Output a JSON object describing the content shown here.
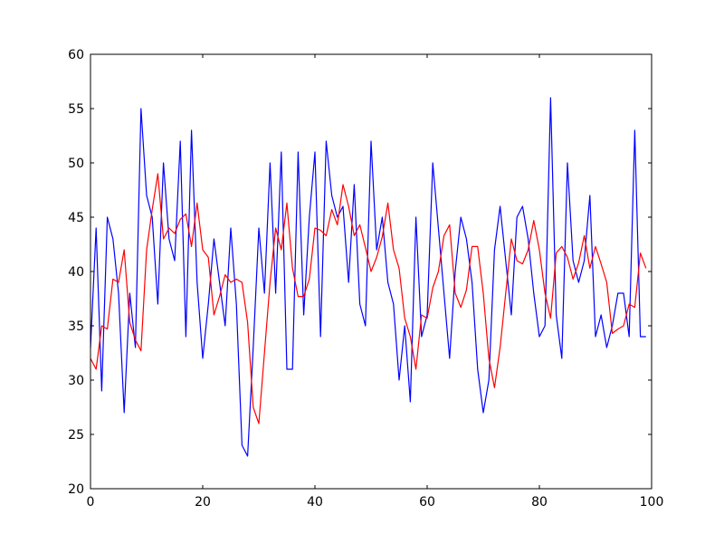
{
  "chart_data": {
    "type": "line",
    "title": "",
    "xlabel": "",
    "ylabel": "",
    "xlim": [
      0,
      100
    ],
    "ylim": [
      20,
      60
    ],
    "x_ticks": [
      0,
      20,
      40,
      60,
      80,
      100
    ],
    "y_ticks": [
      20,
      25,
      30,
      35,
      40,
      45,
      50,
      55,
      60
    ],
    "x_tick_labels": [
      "0",
      "20",
      "40",
      "60",
      "80",
      "100"
    ],
    "y_tick_labels": [
      "20",
      "25",
      "30",
      "35",
      "40",
      "45",
      "50",
      "55",
      "60"
    ],
    "grid": false,
    "legend": "none",
    "series": [
      {
        "color": "#0000ff",
        "x": [
          0,
          1,
          2,
          3,
          4,
          5,
          6,
          7,
          8,
          9,
          10,
          11,
          12,
          13,
          14,
          15,
          16,
          17,
          18,
          19,
          20,
          21,
          22,
          23,
          24,
          25,
          26,
          27,
          28,
          29,
          30,
          31,
          32,
          33,
          34,
          35,
          36,
          37,
          38,
          39,
          40,
          41,
          42,
          43,
          44,
          45,
          46,
          47,
          48,
          49,
          50,
          51,
          52,
          53,
          54,
          55,
          56,
          57,
          58,
          59,
          60,
          61,
          62,
          63,
          64,
          65,
          66,
          67,
          68,
          69,
          70,
          71,
          72,
          73,
          74,
          75,
          76,
          77,
          78,
          79,
          80,
          81,
          82,
          83,
          84,
          85,
          86,
          87,
          88,
          89,
          90,
          91,
          92,
          93,
          94,
          95,
          96,
          97,
          98,
          99
        ],
        "values": [
          33,
          44,
          29,
          45,
          43,
          38,
          27,
          38,
          33,
          55,
          47,
          45,
          37,
          50,
          43,
          41,
          52,
          34,
          53,
          39,
          32,
          37,
          43,
          39,
          35,
          44,
          37,
          24,
          23,
          33,
          44,
          38,
          50,
          38,
          51,
          31,
          31,
          51,
          36,
          45,
          51,
          34,
          52,
          47,
          45,
          46,
          39,
          48,
          37,
          35,
          52,
          42,
          45,
          39,
          37,
          30,
          35,
          28,
          45,
          34,
          36,
          50,
          44,
          38,
          32,
          40,
          45,
          43,
          39,
          31,
          27,
          30,
          42,
          46,
          41,
          36,
          45,
          46,
          43,
          38,
          34,
          35,
          56,
          36,
          32,
          50,
          41,
          39,
          41,
          47,
          34,
          36,
          33,
          35,
          38,
          38,
          34,
          53,
          34,
          34
        ]
      },
      {
        "color": "#ff0000",
        "x": [
          0,
          1,
          2,
          3,
          4,
          5,
          6,
          7,
          8,
          9,
          10,
          11,
          12,
          13,
          14,
          15,
          16,
          17,
          18,
          19,
          20,
          21,
          22,
          23,
          24,
          25,
          26,
          27,
          28,
          29,
          30,
          31,
          32,
          33,
          34,
          35,
          36,
          37,
          38,
          39,
          40,
          41,
          42,
          43,
          44,
          45,
          46,
          47,
          48,
          49,
          50,
          51,
          52,
          53,
          54,
          55,
          56,
          57,
          58,
          59,
          60,
          61,
          62,
          63,
          64,
          65,
          66,
          67,
          68,
          69,
          70,
          71,
          72,
          73,
          74,
          75,
          76,
          77,
          78,
          79,
          80,
          81,
          82,
          83,
          84,
          85,
          86,
          87,
          88,
          89,
          90,
          91,
          92,
          93,
          94,
          95,
          96,
          97,
          98,
          99
        ],
        "values": [
          32,
          31,
          35,
          34.7,
          39.3,
          39,
          42,
          35.3,
          33.7,
          32.7,
          42,
          45.7,
          49,
          43,
          44,
          43.5,
          44.8,
          45.3,
          42.3,
          46.3,
          42,
          41.3,
          36,
          37.7,
          39.7,
          39,
          39.3,
          39,
          35.3,
          27.5,
          26,
          32.5,
          39,
          44,
          42,
          46.3,
          40.3,
          37.7,
          37.7,
          39.3,
          44,
          43.8,
          43.3,
          45.7,
          44.3,
          48,
          46,
          43.3,
          44.3,
          42.2,
          40,
          41.3,
          43.2,
          46.3,
          42,
          40.3,
          35.7,
          34,
          31,
          36,
          35.7,
          38.5,
          40,
          43.3,
          44.3,
          38,
          36.7,
          38.3,
          42.3,
          42.3,
          38,
          32,
          29.3,
          33,
          38,
          43,
          41,
          40.7,
          42,
          44.7,
          42,
          38,
          35.7,
          41.7,
          42.3,
          41.3,
          39.3,
          40.8,
          43.3,
          40.3,
          42.3,
          40.7,
          39,
          34.3,
          34.7,
          35,
          37,
          36.7,
          41.7,
          40.3
        ]
      }
    ]
  }
}
